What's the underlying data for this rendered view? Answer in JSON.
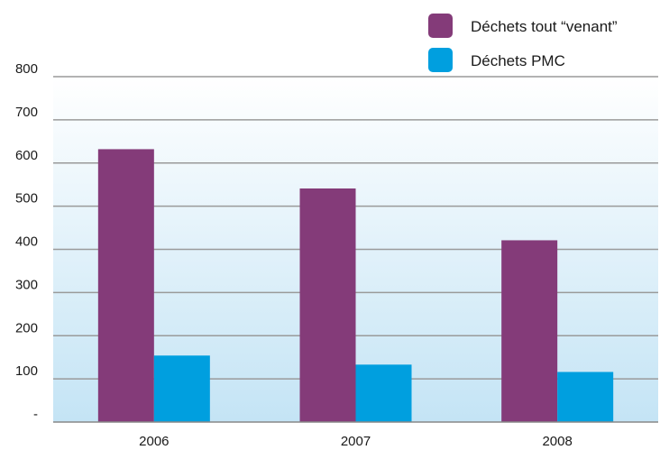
{
  "chart_data": {
    "type": "bar",
    "categories": [
      "2006",
      "2007",
      "2008"
    ],
    "series": [
      {
        "name": "Déchets tout “venant”",
        "values": [
          632,
          541,
          421
        ],
        "color": "#843b79"
      },
      {
        "name": "Déchets PMC",
        "values": [
          154,
          133,
          116
        ],
        "color": "#009fdf"
      }
    ],
    "y_ticks": [
      "-",
      "100",
      "200",
      "300",
      "400",
      "500",
      "600",
      "700",
      "800"
    ],
    "ylim": [
      0,
      800
    ],
    "grid": true,
    "legend_position": "top-right",
    "title": "",
    "xlabel": "",
    "ylabel": ""
  }
}
